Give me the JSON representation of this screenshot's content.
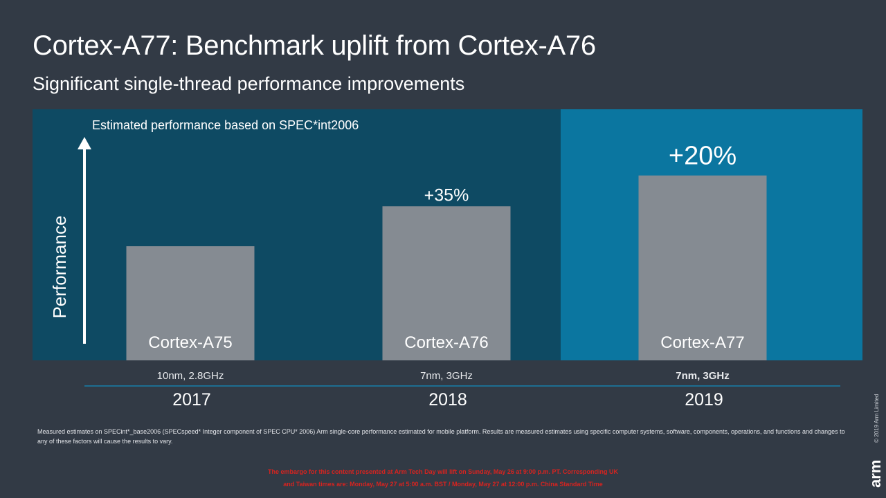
{
  "slide": {
    "title": "Cortex-A77: Benchmark uplift from Cortex-A76",
    "subtitle": "Significant single-thread performance improvements",
    "footnote": "Measured estimates on SPECint*_base2006 (SPECspeed* Integer component of SPEC CPU* 2006) Arm single-core performance estimated for mobile platform.  Results are measured estimates using specific computer systems, software, components, operations, and functions and changes to any of these factors will cause the results to vary.",
    "embargo_line1": "The embargo for this content presented at Arm Tech Day will lift on Sunday, May 26 at 9:00 p.m. PT.  Corresponding UK",
    "embargo_line2": "and Taiwan times are: Monday, May 27 at 5:00 a.m. BST / Monday, May 27 at 12:00 p.m. China Standard Time",
    "copyright": "© 2019 Arm Limited",
    "logo_text": "arm"
  },
  "colors": {
    "background": "#323a45",
    "panel_dark": "#0e4a63",
    "panel_highlight": "#0b76a0",
    "bar": "#858b92",
    "axis_line": "#1d6e92",
    "text": "#ffffff"
  },
  "chart_data": {
    "type": "bar",
    "title": "Estimated performance based on SPEC*int2006",
    "ylabel": "Performance",
    "categories": [
      "Cortex-A75",
      "Cortex-A76",
      "Cortex-A77"
    ],
    "values": [
      100,
      135,
      162
    ],
    "ylim": [
      0,
      220
    ],
    "annotations": [
      "",
      "+35%",
      "+20%"
    ],
    "process": [
      "10nm, 2.8GHz",
      "7nm, 3GHz",
      "7nm, 3GHz"
    ],
    "years": [
      "2017",
      "2018",
      "2019"
    ],
    "highlight_index": 2,
    "grid": false
  }
}
